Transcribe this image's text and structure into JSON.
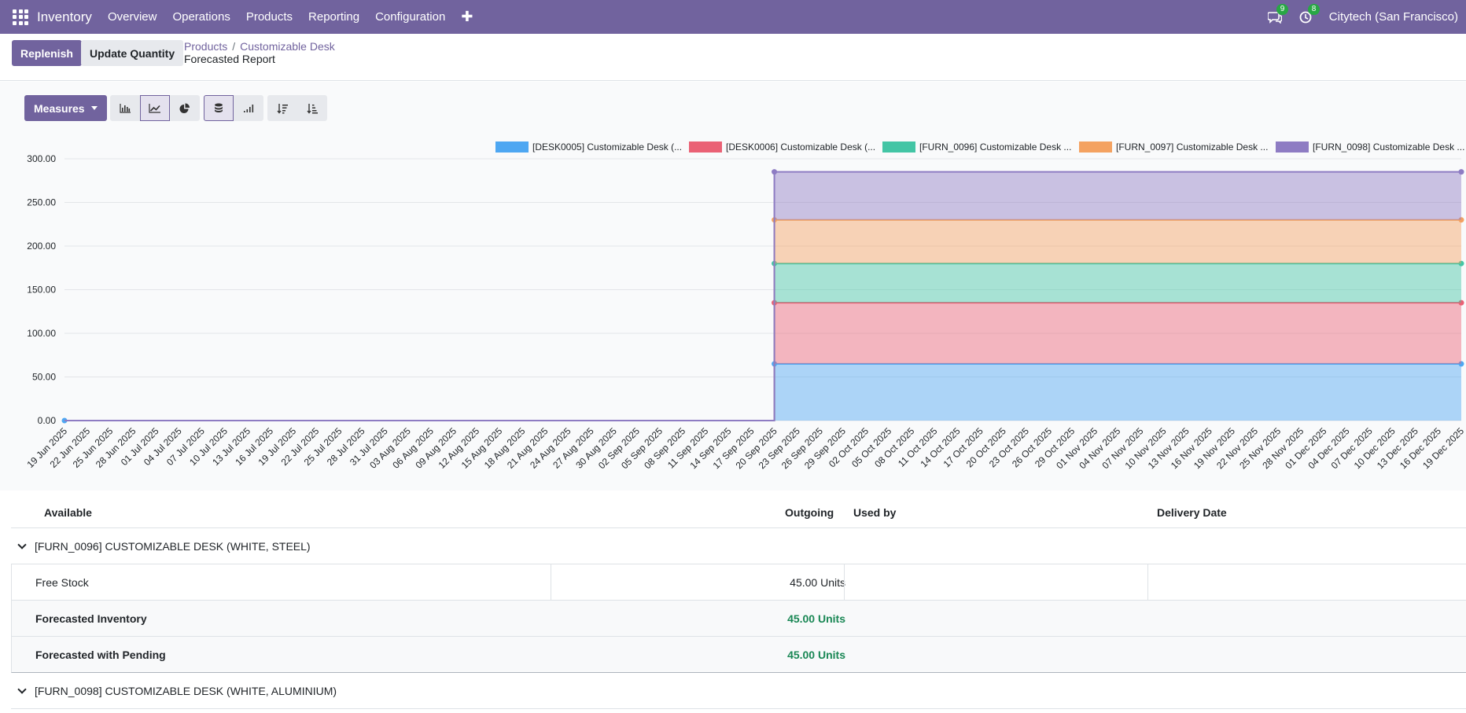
{
  "navbar": {
    "brand": "Inventory",
    "menu": [
      "Overview",
      "Operations",
      "Products",
      "Reporting",
      "Configuration"
    ],
    "messages_count": "9",
    "activities_count": "8",
    "company": "Citytech (San Francisco)",
    "color": "#71639e"
  },
  "control": {
    "replenish_label": "Replenish",
    "update_qty_label": "Update Quantity",
    "breadcrumb": [
      "Products",
      "Customizable Desk"
    ],
    "current": "Forecasted Report"
  },
  "toolbar": {
    "measures_label": "Measures",
    "icons": [
      "bar-chart-icon",
      "line-chart-icon",
      "pie-chart-icon",
      "stacked-icon",
      "cumulative-icon",
      "sort-descending-icon",
      "sort-ascending-icon"
    ]
  },
  "chart_data": {
    "type": "area",
    "stacked": true,
    "ylim": [
      0,
      300
    ],
    "yticks": [
      "0.00",
      "50.00",
      "100.00",
      "150.00",
      "200.00",
      "250.00",
      "300.00"
    ],
    "x": [
      "19 Jun 2025",
      "22 Jun 2025",
      "25 Jun 2025",
      "28 Jun 2025",
      "01 Jul 2025",
      "04 Jul 2025",
      "07 Jul 2025",
      "10 Jul 2025",
      "13 Jul 2025",
      "16 Jul 2025",
      "19 Jul 2025",
      "22 Jul 2025",
      "25 Jul 2025",
      "28 Jul 2025",
      "31 Jul 2025",
      "03 Aug 2025",
      "06 Aug 2025",
      "09 Aug 2025",
      "12 Aug 2025",
      "15 Aug 2025",
      "18 Aug 2025",
      "21 Aug 2025",
      "24 Aug 2025",
      "27 Aug 2025",
      "30 Aug 2025",
      "02 Sep 2025",
      "05 Sep 2025",
      "08 Sep 2025",
      "11 Sep 2025",
      "14 Sep 2025",
      "17 Sep 2025",
      "20 Sep 2025",
      "23 Sep 2025",
      "26 Sep 2025",
      "29 Sep 2025",
      "02 Oct 2025",
      "05 Oct 2025",
      "08 Oct 2025",
      "11 Oct 2025",
      "14 Oct 2025",
      "17 Oct 2025",
      "20 Oct 2025",
      "23 Oct 2025",
      "26 Oct 2025",
      "29 Oct 2025",
      "01 Nov 2025",
      "04 Nov 2025",
      "07 Nov 2025",
      "10 Nov 2025",
      "13 Nov 2025",
      "16 Nov 2025",
      "19 Nov 2025",
      "22 Nov 2025",
      "25 Nov 2025",
      "28 Nov 2025",
      "01 Dec 2025",
      "04 Dec 2025",
      "07 Dec 2025",
      "10 Dec 2025",
      "13 Dec 2025",
      "16 Dec 2025",
      "19 Dec 2025"
    ],
    "series": [
      {
        "name": "[DESK0005] Customizable Desk (...",
        "color": "#4ea7f2",
        "points": [
          [
            "19 Jun 2025",
            0
          ],
          [
            "20 Sep 2025",
            0
          ],
          [
            "20 Sep 2025",
            65
          ],
          [
            "19 Dec 2025",
            65
          ]
        ]
      },
      {
        "name": "[DESK0006] Customizable Desk (...",
        "color": "#ea6175",
        "points": [
          [
            "19 Jun 2025",
            0
          ],
          [
            "20 Sep 2025",
            0
          ],
          [
            "20 Sep 2025",
            70
          ],
          [
            "19 Dec 2025",
            70
          ]
        ]
      },
      {
        "name": "[FURN_0096] Customizable Desk ...",
        "color": "#43c5a5",
        "points": [
          [
            "19 Jun 2025",
            0
          ],
          [
            "20 Sep 2025",
            0
          ],
          [
            "20 Sep 2025",
            45
          ],
          [
            "19 Dec 2025",
            45
          ]
        ]
      },
      {
        "name": "[FURN_0097] Customizable Desk ...",
        "color": "#f4a261",
        "points": [
          [
            "19 Jun 2025",
            0
          ],
          [
            "20 Sep 2025",
            0
          ],
          [
            "20 Sep 2025",
            50
          ],
          [
            "19 Dec 2025",
            50
          ]
        ]
      },
      {
        "name": "[FURN_0098] Customizable Desk ...",
        "color": "#8e7cc3",
        "points": [
          [
            "19 Jun 2025",
            0
          ],
          [
            "20 Sep 2025",
            0
          ],
          [
            "20 Sep 2025",
            55
          ],
          [
            "19 Dec 2025",
            55
          ]
        ]
      }
    ],
    "legend": "top"
  },
  "table": {
    "headers": {
      "available": "Available",
      "outgoing": "Outgoing",
      "used_by": "Used by",
      "delivery_date": "Delivery Date"
    },
    "group1": {
      "title": "[FURN_0096] CUSTOMIZABLE DESK (WHITE, STEEL)",
      "free_stock_label": "Free Stock",
      "free_stock_value": "45.00 Units",
      "forecasted_label": "Forecasted Inventory",
      "forecasted_value": "45.00 Units",
      "pending_label": "Forecasted with Pending",
      "pending_value": "45.00 Units"
    },
    "group2": {
      "title": "[FURN_0098] CUSTOMIZABLE DESK (WHITE, ALUMINIUM)"
    }
  }
}
